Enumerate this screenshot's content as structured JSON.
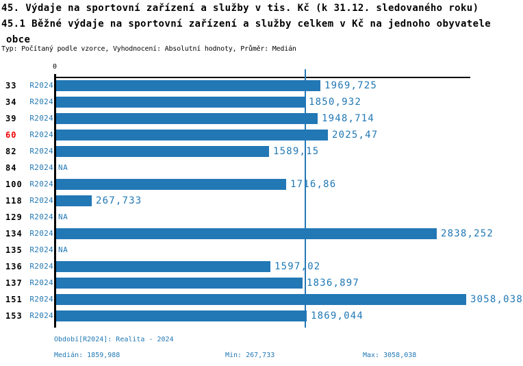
{
  "header": {
    "title_line1": "45. Výdaje na sportovní zařízení a služby v tis. Kč (k 31.12. sledovaného roku)",
    "title_line2": "45.1 Běžné výdaje na sportovní zařízení a služby celkem v Kč na jednoho obyvatele",
    "title_line3": "obce",
    "meta": "Typ: Počítaný podle vzorce, Vyhodnocení: Absolutní hodnoty, Průměr: Medián"
  },
  "axes": {
    "zero_label": "0"
  },
  "chart_data": {
    "type": "bar",
    "orientation": "horizontal",
    "title": "45. Výdaje na sportovní zařízení a služby v tis. Kč (k 31.12. sledovaného roku)",
    "subtitle": "45.1 Běžné výdaje na sportovní zařízení a služby celkem v Kč na jednoho obyvatele obce",
    "xlabel": "",
    "ylabel": "",
    "xlim": [
      0,
      3058.038
    ],
    "grid": false,
    "legend_position": "none",
    "series_name": "R2024",
    "categories": [
      "33",
      "34",
      "39",
      "60",
      "82",
      "84",
      "100",
      "118",
      "129",
      "134",
      "135",
      "136",
      "137",
      "151",
      "153"
    ],
    "rows": [
      {
        "category": "33",
        "period": "R2024",
        "value": 1969.725,
        "label": "1969,725",
        "highlight": false
      },
      {
        "category": "34",
        "period": "R2024",
        "value": 1850.932,
        "label": "1850,932",
        "highlight": false
      },
      {
        "category": "39",
        "period": "R2024",
        "value": 1948.714,
        "label": "1948,714",
        "highlight": false
      },
      {
        "category": "60",
        "period": "R2024",
        "value": 2025.47,
        "label": "2025,47",
        "highlight": true
      },
      {
        "category": "82",
        "period": "R2024",
        "value": 1589.15,
        "label": "1589,15",
        "highlight": false
      },
      {
        "category": "84",
        "period": "R2024",
        "value": null,
        "label": "NA",
        "highlight": false
      },
      {
        "category": "100",
        "period": "R2024",
        "value": 1716.86,
        "label": "1716,86",
        "highlight": false
      },
      {
        "category": "118",
        "period": "R2024",
        "value": 267.733,
        "label": "267,733",
        "highlight": false
      },
      {
        "category": "129",
        "period": "R2024",
        "value": null,
        "label": "NA",
        "highlight": false
      },
      {
        "category": "134",
        "period": "R2024",
        "value": 2838.252,
        "label": "2838,252",
        "highlight": false
      },
      {
        "category": "135",
        "period": "R2024",
        "value": null,
        "label": "NA",
        "highlight": false
      },
      {
        "category": "136",
        "period": "R2024",
        "value": 1597.02,
        "label": "1597,02",
        "highlight": false
      },
      {
        "category": "137",
        "period": "R2024",
        "value": 1836.897,
        "label": "1836,897",
        "highlight": false
      },
      {
        "category": "151",
        "period": "R2024",
        "value": 3058.038,
        "label": "3058,038",
        "highlight": false
      },
      {
        "category": "153",
        "period": "R2024",
        "value": 1869.044,
        "label": "1869,044",
        "highlight": false
      }
    ],
    "median": 1859.988,
    "min": 267.733,
    "max": 3058.038,
    "colors": {
      "bar": "#2277b5",
      "text_blue": "#1f77b4",
      "highlight_red": "#ee0000",
      "axis": "#000000"
    }
  },
  "footer": {
    "period": "Období[R2024]: Realita - 2024",
    "median": "Medián: 1859,988",
    "min": "Min: 267,733",
    "max": "Max: 3058,038"
  }
}
